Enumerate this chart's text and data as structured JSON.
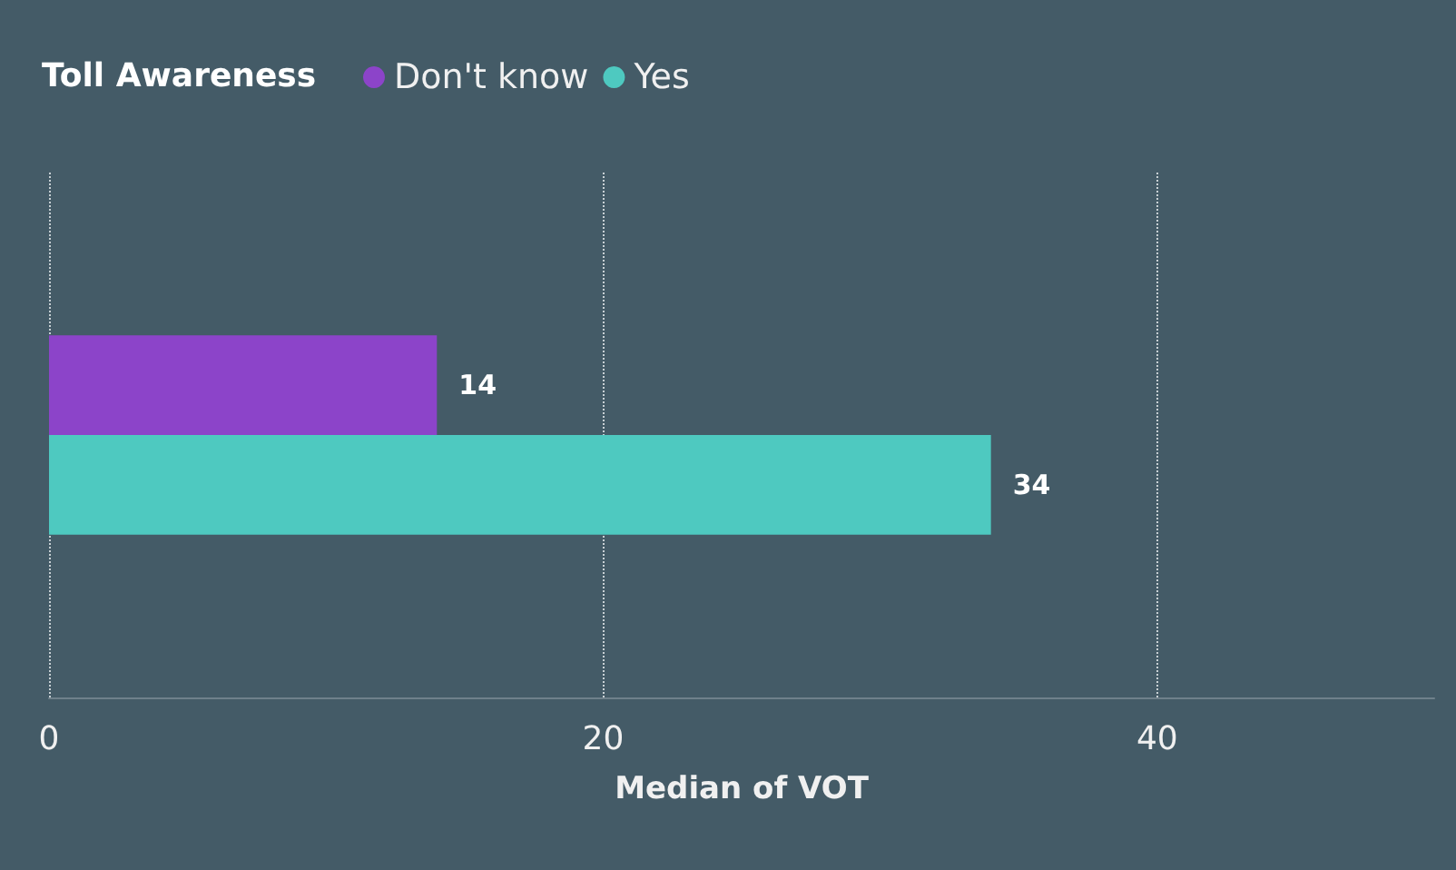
{
  "chart_data": {
    "type": "bar",
    "orientation": "horizontal",
    "legend_title": "Toll Awareness",
    "xlabel": "Median of VOT",
    "categories": [
      null
    ],
    "series": [
      {
        "name": "Don't know",
        "color": "#8c44c9",
        "values": [
          14
        ]
      },
      {
        "name": "Yes",
        "color": "#4ec9c0",
        "values": [
          34
        ]
      }
    ],
    "xlim": [
      0,
      50
    ],
    "xticks": [
      0,
      20,
      40
    ],
    "grid": "x",
    "legend": "top left",
    "data_labels": true
  }
}
